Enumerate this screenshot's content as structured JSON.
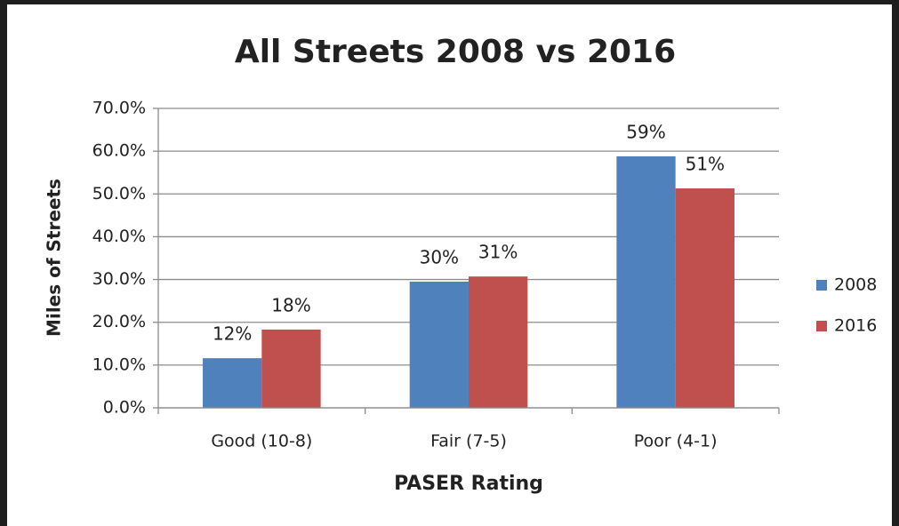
{
  "chart_data": {
    "type": "bar",
    "title": "All Streets 2008 vs 2016",
    "xlabel": "PASER Rating",
    "ylabel": "Miles of Streets",
    "categories": [
      "Good (10-8)",
      "Fair (7-5)",
      "Poor (4-1)"
    ],
    "series": [
      {
        "name": "2008",
        "color": "#4f81bd",
        "values": [
          11.6,
          29.5,
          58.8
        ],
        "value_labels": [
          "12%",
          "30%",
          "59%"
        ]
      },
      {
        "name": "2016",
        "color": "#c0504d",
        "values": [
          18.3,
          30.7,
          51.3
        ],
        "value_labels": [
          "18%",
          "31%",
          "51%"
        ]
      }
    ],
    "ylim": [
      0,
      70
    ],
    "yticks": [
      {
        "value": 0,
        "label": "0.0%"
      },
      {
        "value": 10,
        "label": "10.0%"
      },
      {
        "value": 20,
        "label": "20.0%"
      },
      {
        "value": 30,
        "label": "30.0%"
      },
      {
        "value": 40,
        "label": "40.0%"
      },
      {
        "value": 50,
        "label": "50.0%"
      },
      {
        "value": 60,
        "label": "60.0%"
      },
      {
        "value": 70,
        "label": "70.0%"
      }
    ],
    "grid": true,
    "legend": "right"
  }
}
